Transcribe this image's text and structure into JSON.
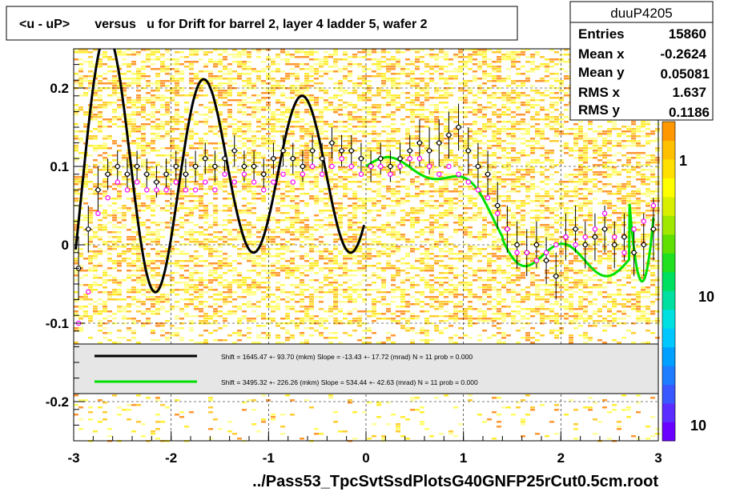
{
  "title": "<u - uP>       versus   u for Drift for barrel 2, layer 4 ladder 5, wafer 2",
  "xlabel": "../Pass53_TpcSvtSsdPlotsG40GNFP25rCut0.5cm.root",
  "stats": {
    "name": "duuP4205",
    "rows": [
      {
        "key": "Entries",
        "value": "15860"
      },
      {
        "key": "Mean x",
        "value": "-0.2624"
      },
      {
        "key": "Mean y",
        "value": "0.05081"
      },
      {
        "key": "RMS x",
        "value": "1.637"
      },
      {
        "key": "RMS y",
        "value": "0.1186"
      }
    ]
  },
  "legend": [
    {
      "color": "#000000",
      "text": "Shift =  1645.47 +- 93.70 (mkm) Slope =   -13.43 +- 17.72 (mrad)  N = 11 prob = 0.000"
    },
    {
      "color": "#00e000",
      "text": "Shift =  3495.32 +- 226.26 (mkm) Slope =   534.44 +- 42.63 (mrad)  N = 11 prob = 0.000"
    }
  ],
  "colorbar": {
    "labels": [
      "1",
      "10",
      "10"
    ],
    "colors": [
      "#6a00ff",
      "#5a2cff",
      "#3a58ff",
      "#1e7cff",
      "#00a0ff",
      "#00c8ff",
      "#00e0e0",
      "#00e0a0",
      "#00e060",
      "#20e020",
      "#60e000",
      "#a0e800",
      "#d8f000",
      "#ffff00",
      "#ffe000",
      "#ffc000",
      "#ff9800"
    ]
  },
  "chart_data": {
    "type": "scatter",
    "title": "<u - uP>       versus   u for Drift for barrel 2, layer 4 ladder 5, wafer 2",
    "xlabel": "../Pass53_TpcSvtSsdPlotsG40GNFP25rCut0.5cm.root",
    "ylabel": "",
    "xlim": [
      -3,
      3
    ],
    "ylim": [
      -0.25,
      0.25
    ],
    "xticks": [
      -3,
      -2,
      -1,
      0,
      1,
      2,
      3
    ],
    "yticks": [
      -0.2,
      -0.1,
      0,
      0.1,
      0.2
    ],
    "xtick_labels": [
      "-3",
      "-2",
      "-1",
      "0",
      "1",
      "2",
      "3"
    ],
    "ytick_labels": [
      "-0.2",
      "-0.1",
      "0",
      "0.1",
      "0.2"
    ],
    "grid": true,
    "series": [
      {
        "name": "",
        "color": "#000000",
        "marker": "open-circle",
        "x": [
          -2.95,
          -2.85,
          -2.75,
          -2.65,
          -2.55,
          -2.45,
          -2.35,
          -2.25,
          -2.15,
          -2.05,
          -1.95,
          -1.85,
          -1.75,
          -1.65,
          -1.55,
          -1.45,
          -1.35,
          -1.25,
          -1.15,
          -1.05,
          -0.95,
          -0.85,
          -0.75,
          -0.65,
          -0.55,
          -0.45,
          -0.35,
          -0.25,
          -0.15,
          -0.05,
          0.05,
          0.15,
          0.25,
          0.35,
          0.45,
          0.55,
          0.65,
          0.75,
          0.85,
          0.95,
          1.05,
          1.15,
          1.25,
          1.35,
          1.45,
          1.55,
          1.65,
          1.75,
          1.85,
          1.95,
          2.05,
          2.15,
          2.25,
          2.35,
          2.45,
          2.55,
          2.65,
          2.75,
          2.85,
          2.95
        ],
        "y": [
          -0.03,
          0.02,
          0.07,
          0.09,
          0.1,
          0.09,
          0.1,
          0.09,
          0.08,
          0.09,
          0.1,
          0.09,
          0.1,
          0.11,
          0.1,
          0.11,
          0.12,
          0.1,
          0.1,
          0.09,
          0.11,
          0.12,
          0.11,
          0.1,
          0.12,
          0.11,
          0.13,
          0.12,
          0.12,
          0.11,
          0.1,
          0.11,
          0.1,
          0.11,
          0.12,
          0.13,
          0.12,
          0.13,
          0.14,
          0.15,
          0.12,
          0.1,
          0.09,
          0.05,
          0.02,
          0.0,
          -0.01,
          0.0,
          -0.02,
          -0.04,
          0.01,
          0.02,
          0.0,
          0.01,
          0.02,
          0.0,
          0.01,
          -0.01,
          0.0,
          0.02
        ],
        "yerr": [
          0.04,
          0.03,
          0.03,
          0.02,
          0.02,
          0.02,
          0.02,
          0.02,
          0.02,
          0.02,
          0.02,
          0.02,
          0.02,
          0.02,
          0.02,
          0.02,
          0.02,
          0.02,
          0.02,
          0.02,
          0.02,
          0.02,
          0.02,
          0.02,
          0.02,
          0.02,
          0.02,
          0.02,
          0.02,
          0.02,
          0.02,
          0.02,
          0.02,
          0.02,
          0.02,
          0.03,
          0.03,
          0.03,
          0.03,
          0.03,
          0.03,
          0.03,
          0.03,
          0.03,
          0.03,
          0.03,
          0.03,
          0.03,
          0.03,
          0.03,
          0.03,
          0.03,
          0.03,
          0.03,
          0.03,
          0.03,
          0.03,
          0.03,
          0.04,
          0.04
        ]
      },
      {
        "name": "",
        "color": "#ff00ff",
        "marker": "open-circle",
        "x": [
          -2.95,
          -2.85,
          -2.75,
          -2.65,
          -2.55,
          -2.45,
          -2.35,
          -2.25,
          -2.15,
          -2.05,
          -1.95,
          -1.85,
          -1.75,
          -1.65,
          -1.55,
          -1.45,
          -1.35,
          -1.25,
          -1.15,
          -1.05,
          -0.95,
          -0.85,
          -0.75,
          -0.65,
          -0.55,
          -0.45,
          -0.35,
          -0.25,
          -0.15,
          -0.05,
          0.05,
          0.15,
          0.25,
          0.35,
          0.45,
          0.55,
          0.65,
          0.75,
          0.85,
          0.95,
          1.05,
          1.15,
          1.25,
          1.35,
          1.45,
          1.55,
          1.65,
          1.75,
          1.85,
          1.95,
          2.05,
          2.15,
          2.25,
          2.35,
          2.45,
          2.55,
          2.65,
          2.75,
          2.85,
          2.95
        ],
        "y": [
          -0.1,
          -0.06,
          0.04,
          0.06,
          0.08,
          0.07,
          0.08,
          0.07,
          0.07,
          0.07,
          0.08,
          0.07,
          0.07,
          0.08,
          0.07,
          0.09,
          0.08,
          0.09,
          0.08,
          0.07,
          0.08,
          0.09,
          0.08,
          0.09,
          0.1,
          0.09,
          0.1,
          0.11,
          0.1,
          0.09,
          0.1,
          0.1,
          0.09,
          0.1,
          0.11,
          0.11,
          0.1,
          0.09,
          0.1,
          0.09,
          0.08,
          0.07,
          0.06,
          0.04,
          0.02,
          -0.01,
          -0.01,
          -0.02,
          -0.01,
          0.0,
          0.01,
          0.0,
          0.01,
          0.02,
          0.04,
          0.01,
          -0.01,
          0.02,
          0.03,
          0.05
        ],
        "yerr": []
      }
    ],
    "fits": [
      {
        "name": "",
        "color": "#000000",
        "kind": "damped-oscillation",
        "xrange": [
          -2.98,
          -0.02
        ]
      },
      {
        "name": "",
        "color": "#00e000",
        "kind": "damped-oscillation",
        "xrange": [
          0.0,
          2.95
        ]
      }
    ]
  }
}
